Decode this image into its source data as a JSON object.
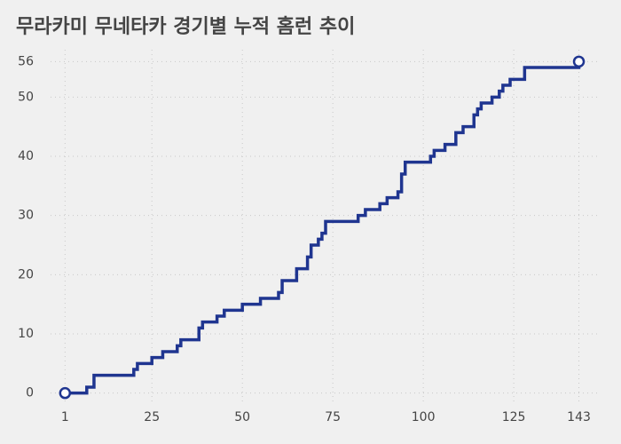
{
  "chart_data": {
    "type": "step",
    "title": "무라카미 무네타카 경기별 누적 홈런 추이",
    "x": [
      1,
      7,
      9,
      20,
      21,
      25,
      28,
      32,
      33,
      38,
      39,
      43,
      45,
      50,
      55,
      60,
      61,
      65,
      68,
      69,
      71,
      72,
      73,
      82,
      84,
      88,
      90,
      93,
      94,
      95,
      102,
      103,
      106,
      109,
      111,
      114,
      115,
      116,
      119,
      121,
      122,
      124,
      128,
      143
    ],
    "values": [
      0,
      1,
      3,
      4,
      5,
      6,
      7,
      8,
      9,
      11,
      12,
      13,
      14,
      15,
      16,
      17,
      19,
      21,
      23,
      25,
      26,
      27,
      29,
      30,
      31,
      32,
      33,
      34,
      37,
      39,
      40,
      41,
      42,
      44,
      45,
      47,
      48,
      49,
      50,
      51,
      52,
      53,
      55,
      56
    ],
    "color": "#1f3590",
    "xlim": [
      -3,
      149
    ],
    "xticks": [
      1,
      25,
      50,
      75,
      100,
      125,
      143
    ],
    "ylim": [
      -2,
      58
    ],
    "yticks": [
      0,
      10,
      20,
      30,
      40,
      50,
      56
    ],
    "grid": true
  }
}
